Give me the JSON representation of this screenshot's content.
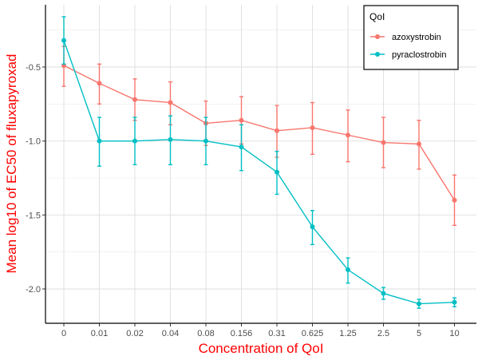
{
  "chart_data": {
    "type": "line",
    "xlabel": "Concentration of QoI",
    "ylabel": "Mean log10 of EC50 of fluxapyroxad",
    "categories": [
      "0",
      "0.01",
      "0.02",
      "0.04",
      "0.08",
      "0.156",
      "0.31",
      "0.625",
      "1.25",
      "2.5",
      "5",
      "10"
    ],
    "ylim": [
      -2.24,
      -2.15
    ],
    "yticks": [
      -2.0,
      -1.5,
      -1.0,
      -0.5
    ],
    "ytick_labels": [
      "-2.0",
      "-1.5",
      "-1.0",
      "-0.5"
    ],
    "grid": true,
    "legend": {
      "title": "QoI",
      "position": "top-right"
    },
    "series": [
      {
        "name": "azoxystrobin",
        "color": "#f8766d",
        "values": [
          -0.49,
          -0.61,
          -0.72,
          -0.74,
          -0.88,
          -0.86,
          -0.93,
          -0.91,
          -0.96,
          -1.01,
          -1.02,
          -1.4
        ],
        "lower": [
          -0.63,
          -0.75,
          -0.86,
          -0.89,
          -1.03,
          -1.02,
          -1.11,
          -1.09,
          -1.14,
          -1.18,
          -1.19,
          -1.57
        ],
        "upper": [
          -0.36,
          -0.48,
          -0.58,
          -0.6,
          -0.73,
          -0.7,
          -0.76,
          -0.74,
          -0.79,
          -0.84,
          -0.86,
          -1.23
        ]
      },
      {
        "name": "pyraclostrobin",
        "color": "#00bfc4",
        "values": [
          -0.32,
          -1.0,
          -1.0,
          -0.99,
          -1.0,
          -1.04,
          -1.21,
          -1.58,
          -1.87,
          -2.03,
          -2.1,
          -2.09
        ],
        "lower": [
          -0.48,
          -1.17,
          -1.16,
          -1.16,
          -1.16,
          -1.2,
          -1.36,
          -1.7,
          -1.96,
          -2.07,
          -2.13,
          -2.12
        ],
        "upper": [
          -0.16,
          -0.84,
          -0.84,
          -0.83,
          -0.84,
          -0.89,
          -1.07,
          -1.47,
          -1.79,
          -1.99,
          -2.07,
          -2.06
        ]
      }
    ]
  }
}
